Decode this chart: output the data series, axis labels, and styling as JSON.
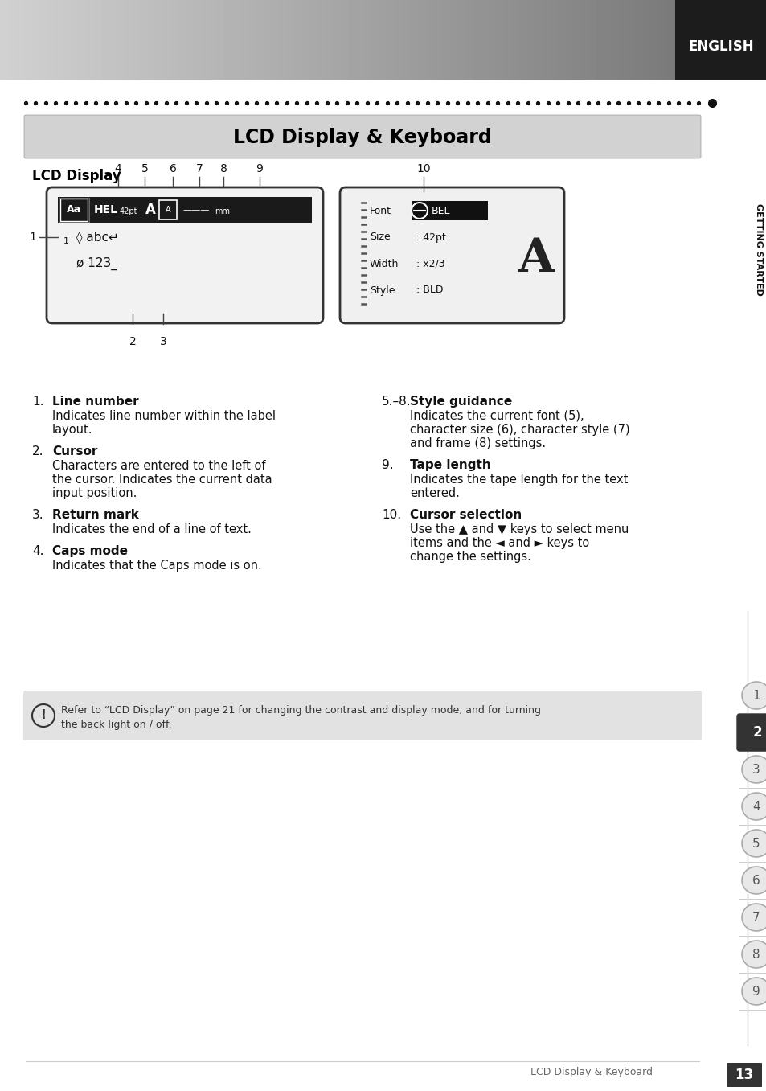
{
  "title": "LCD Display & Keyboard",
  "section_title": "LCD Display",
  "page_bg": "#ffffff",
  "page_number": "13",
  "page_label": "LCD Display & Keyboard",
  "note_text": "Refer to “LCD Display” on page 21 for changing the contrast and display mode, and for turning\nthe back light on / off.",
  "items_left": [
    {
      "num": "1.",
      "bold": "Line number",
      "text": "Indicates line number within the label\nlayout."
    },
    {
      "num": "2.",
      "bold": "Cursor",
      "text": "Characters are entered to the left of\nthe cursor. Indicates the current data\ninput position."
    },
    {
      "num": "3.",
      "bold": "Return mark",
      "text": "Indicates the end of a line of text."
    },
    {
      "num": "4.",
      "bold": "Caps mode",
      "text": "Indicates that the Caps mode is on."
    }
  ],
  "items_right": [
    {
      "num": "5.–8.",
      "bold": "Style guidance",
      "text": "Indicates the current font (5),\ncharacter size (6), character style (7)\nand frame (8) settings."
    },
    {
      "num": "9.",
      "bold": "Tape length",
      "text": "Indicates the tape length for the text\nentered."
    },
    {
      "num": "10.",
      "bold": "Cursor selection",
      "text": "Use the ▲ and ▼ keys to select menu\nitems and the ◄ and ► keys to\nchange the settings."
    }
  ],
  "sidebar_numbers": [
    "1",
    "2",
    "3",
    "4",
    "5",
    "6",
    "7",
    "8",
    "9"
  ],
  "active_num": "2"
}
